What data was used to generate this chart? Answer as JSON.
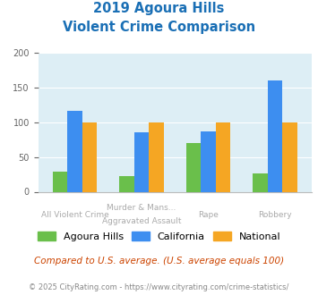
{
  "title_line1": "2019 Agoura Hills",
  "title_line2": "Violent Crime Comparison",
  "series": {
    "Agoura Hills": [
      29,
      22,
      70,
      26
    ],
    "California": [
      117,
      86,
      87,
      161
    ],
    "National": [
      100,
      100,
      100,
      100
    ]
  },
  "colors": {
    "Agoura Hills": "#6abf4b",
    "California": "#3d8ef0",
    "National": "#f5a623"
  },
  "ylim": [
    0,
    200
  ],
  "yticks": [
    0,
    50,
    100,
    150,
    200
  ],
  "title_color": "#1a6fb5",
  "plot_bg": "#ddeef5",
  "cat_top_labels": [
    "",
    "Murder & Mans...",
    "",
    ""
  ],
  "cat_bot_labels": [
    "All Violent Crime",
    "Aggravated Assault",
    "Rape",
    "Robbery"
  ],
  "footnote1": "Compared to U.S. average. (U.S. average equals 100)",
  "footnote2": "© 2025 CityRating.com - https://www.cityrating.com/crime-statistics/",
  "footnote1_color": "#cc4400",
  "footnote2_color": "#888888"
}
